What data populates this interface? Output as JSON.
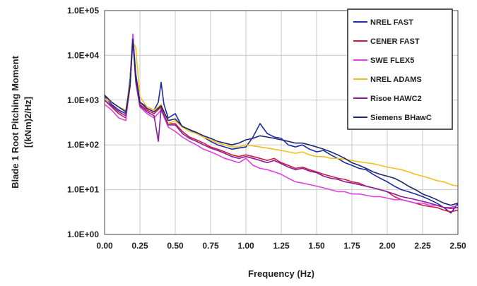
{
  "chart_data": {
    "type": "line",
    "title": "",
    "xlabel": "Frequency (Hz)",
    "ylabel_line1": "Blade 1 Root Pitching Moment",
    "ylabel_line2": "[(kNm)2/Hz]",
    "xscale": "linear",
    "yscale": "log",
    "xlim": [
      0,
      2.5
    ],
    "ylim": [
      1,
      100000
    ],
    "x_ticks": [
      "0.00",
      "0.25",
      "0.50",
      "0.75",
      "1.00",
      "1.25",
      "1.50",
      "1.75",
      "2.00",
      "2.25",
      "2.50"
    ],
    "y_ticks": [
      "1.0E+00",
      "1.0E+01",
      "1.0E+02",
      "1.0E+03",
      "1.0E+04",
      "1.0E+05"
    ],
    "grid": true,
    "legend_position": "top-right",
    "series": [
      {
        "name": "NREL FAST",
        "color": "#1f2aa8",
        "points": [
          [
            0,
            1200
          ],
          [
            0.05,
            800
          ],
          [
            0.1,
            600
          ],
          [
            0.15,
            500
          ],
          [
            0.18,
            3000
          ],
          [
            0.2,
            28000
          ],
          [
            0.22,
            4000
          ],
          [
            0.25,
            900
          ],
          [
            0.3,
            700
          ],
          [
            0.35,
            600
          ],
          [
            0.38,
            900
          ],
          [
            0.4,
            2500
          ],
          [
            0.42,
            800
          ],
          [
            0.45,
            400
          ],
          [
            0.5,
            500
          ],
          [
            0.55,
            250
          ],
          [
            0.6,
            220
          ],
          [
            0.65,
            180
          ],
          [
            0.7,
            150
          ],
          [
            0.75,
            120
          ],
          [
            0.8,
            100
          ],
          [
            0.85,
            90
          ],
          [
            0.9,
            80
          ],
          [
            0.95,
            85
          ],
          [
            1.0,
            90
          ],
          [
            1.05,
            150
          ],
          [
            1.1,
            300
          ],
          [
            1.15,
            180
          ],
          [
            1.2,
            150
          ],
          [
            1.25,
            140
          ],
          [
            1.3,
            100
          ],
          [
            1.35,
            90
          ],
          [
            1.4,
            100
          ],
          [
            1.45,
            80
          ],
          [
            1.5,
            70
          ],
          [
            1.55,
            75
          ],
          [
            1.6,
            60
          ],
          [
            1.65,
            50
          ],
          [
            1.7,
            40
          ],
          [
            1.75,
            35
          ],
          [
            1.8,
            30
          ],
          [
            1.85,
            28
          ],
          [
            1.9,
            22
          ],
          [
            1.95,
            18
          ],
          [
            2.0,
            15
          ],
          [
            2.05,
            12
          ],
          [
            2.1,
            10
          ],
          [
            2.15,
            9
          ],
          [
            2.2,
            8
          ],
          [
            2.25,
            7
          ],
          [
            2.3,
            6
          ],
          [
            2.35,
            5
          ],
          [
            2.4,
            4
          ],
          [
            2.45,
            3
          ],
          [
            2.5,
            5
          ]
        ]
      },
      {
        "name": "CENER FAST",
        "color": "#c81e3c",
        "points": [
          [
            0,
            1000
          ],
          [
            0.05,
            700
          ],
          [
            0.1,
            500
          ],
          [
            0.15,
            400
          ],
          [
            0.18,
            2000
          ],
          [
            0.2,
            25000
          ],
          [
            0.22,
            3000
          ],
          [
            0.25,
            800
          ],
          [
            0.3,
            600
          ],
          [
            0.35,
            500
          ],
          [
            0.4,
            700
          ],
          [
            0.45,
            300
          ],
          [
            0.5,
            300
          ],
          [
            0.55,
            200
          ],
          [
            0.6,
            150
          ],
          [
            0.65,
            130
          ],
          [
            0.7,
            110
          ],
          [
            0.75,
            90
          ],
          [
            0.8,
            80
          ],
          [
            0.85,
            70
          ],
          [
            0.9,
            60
          ],
          [
            0.95,
            55
          ],
          [
            1.0,
            60
          ],
          [
            1.05,
            55
          ],
          [
            1.1,
            50
          ],
          [
            1.15,
            45
          ],
          [
            1.2,
            50
          ],
          [
            1.25,
            40
          ],
          [
            1.3,
            35
          ],
          [
            1.35,
            30
          ],
          [
            1.4,
            32
          ],
          [
            1.45,
            28
          ],
          [
            1.5,
            25
          ],
          [
            1.55,
            22
          ],
          [
            1.6,
            20
          ],
          [
            1.65,
            18
          ],
          [
            1.7,
            17
          ],
          [
            1.75,
            15
          ],
          [
            1.8,
            14
          ],
          [
            1.85,
            12
          ],
          [
            1.9,
            11
          ],
          [
            1.95,
            10
          ],
          [
            2.0,
            9
          ],
          [
            2.05,
            7
          ],
          [
            2.1,
            6
          ],
          [
            2.15,
            5.5
          ],
          [
            2.2,
            5
          ],
          [
            2.25,
            4.5
          ],
          [
            2.3,
            4.2
          ],
          [
            2.35,
            4
          ],
          [
            2.4,
            3.5
          ],
          [
            2.45,
            3.2
          ],
          [
            2.5,
            3.5
          ]
        ]
      },
      {
        "name": "SWE FLEX5",
        "color": "#e040e0",
        "points": [
          [
            0,
            800
          ],
          [
            0.05,
            600
          ],
          [
            0.1,
            400
          ],
          [
            0.15,
            350
          ],
          [
            0.18,
            2500
          ],
          [
            0.2,
            30000
          ],
          [
            0.22,
            2500
          ],
          [
            0.25,
            700
          ],
          [
            0.3,
            500
          ],
          [
            0.35,
            400
          ],
          [
            0.4,
            600
          ],
          [
            0.45,
            250
          ],
          [
            0.5,
            200
          ],
          [
            0.55,
            150
          ],
          [
            0.6,
            120
          ],
          [
            0.65,
            100
          ],
          [
            0.7,
            80
          ],
          [
            0.75,
            70
          ],
          [
            0.8,
            60
          ],
          [
            0.85,
            50
          ],
          [
            0.9,
            45
          ],
          [
            0.95,
            40
          ],
          [
            1.0,
            50
          ],
          [
            1.05,
            35
          ],
          [
            1.1,
            30
          ],
          [
            1.15,
            28
          ],
          [
            1.2,
            25
          ],
          [
            1.25,
            22
          ],
          [
            1.3,
            18
          ],
          [
            1.35,
            15
          ],
          [
            1.4,
            14
          ],
          [
            1.45,
            13
          ],
          [
            1.5,
            12
          ],
          [
            1.55,
            11
          ],
          [
            1.6,
            10
          ],
          [
            1.65,
            9
          ],
          [
            1.7,
            9
          ],
          [
            1.75,
            8
          ],
          [
            1.8,
            8
          ],
          [
            1.85,
            7.5
          ],
          [
            1.9,
            7
          ],
          [
            1.95,
            7
          ],
          [
            2.0,
            6.5
          ],
          [
            2.05,
            6
          ],
          [
            2.1,
            6
          ],
          [
            2.15,
            5.5
          ],
          [
            2.2,
            5
          ],
          [
            2.25,
            5
          ],
          [
            2.3,
            4.5
          ],
          [
            2.35,
            4.5
          ],
          [
            2.4,
            4
          ],
          [
            2.45,
            4
          ],
          [
            2.5,
            4.5
          ]
        ]
      },
      {
        "name": "NREL ADAMS",
        "color": "#f0c020",
        "points": [
          [
            0,
            1100
          ],
          [
            0.05,
            900
          ],
          [
            0.1,
            700
          ],
          [
            0.15,
            600
          ],
          [
            0.18,
            2500
          ],
          [
            0.2,
            20000
          ],
          [
            0.22,
            15000
          ],
          [
            0.25,
            1200
          ],
          [
            0.3,
            700
          ],
          [
            0.35,
            600
          ],
          [
            0.4,
            800
          ],
          [
            0.45,
            300
          ],
          [
            0.5,
            350
          ],
          [
            0.55,
            250
          ],
          [
            0.6,
            200
          ],
          [
            0.65,
            180
          ],
          [
            0.7,
            150
          ],
          [
            0.75,
            130
          ],
          [
            0.8,
            110
          ],
          [
            0.85,
            100
          ],
          [
            0.9,
            90
          ],
          [
            0.95,
            90
          ],
          [
            1.0,
            100
          ],
          [
            1.05,
            95
          ],
          [
            1.1,
            90
          ],
          [
            1.15,
            85
          ],
          [
            1.2,
            80
          ],
          [
            1.25,
            75
          ],
          [
            1.3,
            70
          ],
          [
            1.35,
            65
          ],
          [
            1.4,
            70
          ],
          [
            1.45,
            60
          ],
          [
            1.5,
            55
          ],
          [
            1.55,
            55
          ],
          [
            1.6,
            50
          ],
          [
            1.65,
            50
          ],
          [
            1.7,
            48
          ],
          [
            1.75,
            45
          ],
          [
            1.8,
            42
          ],
          [
            1.85,
            40
          ],
          [
            1.9,
            38
          ],
          [
            1.95,
            35
          ],
          [
            2.0,
            32
          ],
          [
            2.05,
            30
          ],
          [
            2.1,
            28
          ],
          [
            2.15,
            25
          ],
          [
            2.2,
            22
          ],
          [
            2.25,
            20
          ],
          [
            2.3,
            18
          ],
          [
            2.35,
            16
          ],
          [
            2.4,
            15
          ],
          [
            2.45,
            13
          ],
          [
            2.5,
            12
          ]
        ]
      },
      {
        "name": "Risoe HAWC2",
        "color": "#8a1a9a",
        "points": [
          [
            0,
            1000
          ],
          [
            0.05,
            750
          ],
          [
            0.1,
            550
          ],
          [
            0.15,
            450
          ],
          [
            0.18,
            2000
          ],
          [
            0.2,
            22000
          ],
          [
            0.22,
            2800
          ],
          [
            0.25,
            750
          ],
          [
            0.3,
            550
          ],
          [
            0.35,
            450
          ],
          [
            0.38,
            120
          ],
          [
            0.4,
            650
          ],
          [
            0.45,
            280
          ],
          [
            0.5,
            280
          ],
          [
            0.55,
            180
          ],
          [
            0.6,
            140
          ],
          [
            0.65,
            120
          ],
          [
            0.7,
            100
          ],
          [
            0.75,
            85
          ],
          [
            0.8,
            75
          ],
          [
            0.85,
            65
          ],
          [
            0.9,
            55
          ],
          [
            0.95,
            50
          ],
          [
            1.0,
            55
          ],
          [
            1.05,
            50
          ],
          [
            1.1,
            45
          ],
          [
            1.15,
            40
          ],
          [
            1.2,
            45
          ],
          [
            1.25,
            38
          ],
          [
            1.3,
            32
          ],
          [
            1.35,
            28
          ],
          [
            1.4,
            30
          ],
          [
            1.45,
            26
          ],
          [
            1.5,
            24
          ],
          [
            1.55,
            20
          ],
          [
            1.6,
            18
          ],
          [
            1.65,
            17
          ],
          [
            1.7,
            15
          ],
          [
            1.75,
            14
          ],
          [
            1.8,
            13
          ],
          [
            1.85,
            12
          ],
          [
            1.9,
            11
          ],
          [
            1.95,
            10
          ],
          [
            2.0,
            9
          ],
          [
            2.05,
            8
          ],
          [
            2.1,
            7
          ],
          [
            2.15,
            6.5
          ],
          [
            2.2,
            6
          ],
          [
            2.25,
            5.5
          ],
          [
            2.3,
            5
          ],
          [
            2.35,
            4.5
          ],
          [
            2.4,
            4
          ],
          [
            2.45,
            3.8
          ],
          [
            2.5,
            4
          ]
        ]
      },
      {
        "name": "Siemens BHawC",
        "color": "#1a2a6a",
        "points": [
          [
            0,
            1300
          ],
          [
            0.05,
            900
          ],
          [
            0.1,
            700
          ],
          [
            0.15,
            550
          ],
          [
            0.18,
            2200
          ],
          [
            0.2,
            23000
          ],
          [
            0.22,
            3500
          ],
          [
            0.25,
            900
          ],
          [
            0.3,
            650
          ],
          [
            0.35,
            550
          ],
          [
            0.4,
            750
          ],
          [
            0.45,
            350
          ],
          [
            0.5,
            380
          ],
          [
            0.55,
            260
          ],
          [
            0.6,
            220
          ],
          [
            0.65,
            190
          ],
          [
            0.7,
            160
          ],
          [
            0.75,
            140
          ],
          [
            0.8,
            120
          ],
          [
            0.85,
            110
          ],
          [
            0.9,
            100
          ],
          [
            0.95,
            110
          ],
          [
            1.0,
            130
          ],
          [
            1.05,
            140
          ],
          [
            1.1,
            160
          ],
          [
            1.15,
            150
          ],
          [
            1.2,
            140
          ],
          [
            1.25,
            130
          ],
          [
            1.3,
            120
          ],
          [
            1.35,
            110
          ],
          [
            1.4,
            110
          ],
          [
            1.45,
            100
          ],
          [
            1.5,
            90
          ],
          [
            1.55,
            80
          ],
          [
            1.6,
            70
          ],
          [
            1.65,
            60
          ],
          [
            1.7,
            50
          ],
          [
            1.75,
            40
          ],
          [
            1.8,
            35
          ],
          [
            1.85,
            30
          ],
          [
            1.9,
            25
          ],
          [
            1.95,
            22
          ],
          [
            2.0,
            20
          ],
          [
            2.05,
            18
          ],
          [
            2.1,
            15
          ],
          [
            2.15,
            12
          ],
          [
            2.2,
            10
          ],
          [
            2.25,
            8
          ],
          [
            2.3,
            7
          ],
          [
            2.35,
            6
          ],
          [
            2.4,
            5
          ],
          [
            2.45,
            4.5
          ],
          [
            2.5,
            5
          ]
        ]
      }
    ]
  }
}
